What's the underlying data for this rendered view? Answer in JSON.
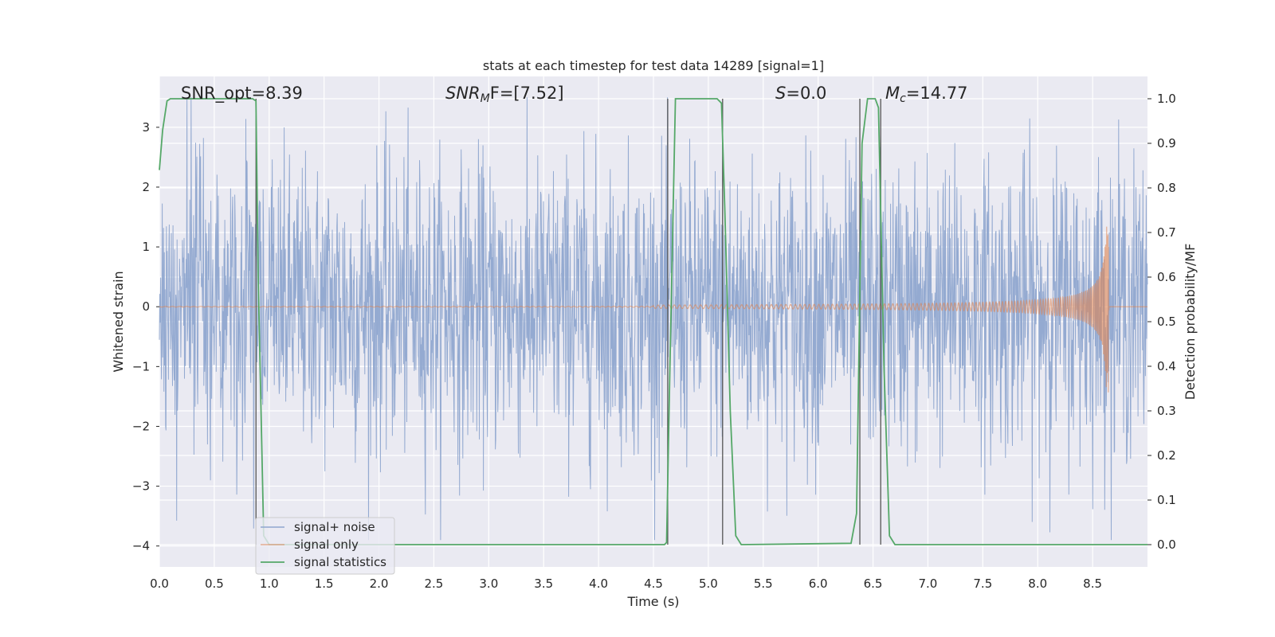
{
  "chart_data": {
    "type": "line",
    "title": "stats at each timestep for test data 14289 [signal=1]",
    "xlabel": "Time (s)",
    "ylabel": "Whitened strain",
    "ylabel_right": "Detection probability/MF",
    "xlim": [
      0.0,
      9.0
    ],
    "ylim": [
      -4.35,
      3.85
    ],
    "ylim_right": [
      -0.05,
      1.05
    ],
    "xticks": [
      "0.0",
      "0.5",
      "1.0",
      "1.5",
      "2.0",
      "2.5",
      "3.0",
      "3.5",
      "4.0",
      "4.5",
      "5.0",
      "5.5",
      "6.0",
      "6.5",
      "7.0",
      "7.5",
      "8.0",
      "8.5"
    ],
    "yticks_left": [
      "3",
      "2",
      "1",
      "0",
      "−1",
      "−2",
      "−3",
      "−4"
    ],
    "yticks_right": [
      "1.0",
      "0.9",
      "0.8",
      "0.7",
      "0.6",
      "0.5",
      "0.4",
      "0.3",
      "0.2",
      "0.1",
      "0.0"
    ],
    "grid": true,
    "legend_placement": "lower-left",
    "annotations": [
      {
        "text": "SNR_opt=8.39",
        "x": 0.2
      },
      {
        "text": "F=[7.52]",
        "prefix": "SNR",
        "sub": "M",
        "x": 2.6
      },
      {
        "text": "=0.0",
        "prefix": "S",
        "x": 5.6
      },
      {
        "text": "=14.77",
        "prefix": "M",
        "sub": "c",
        "x": 6.6
      }
    ],
    "series": [
      {
        "name": "signal+ noise",
        "color": "#8fa6cf",
        "noise_amplitude": 1.2,
        "noise_peak": 3.5
      },
      {
        "name": "signal only",
        "color": "#dd8452",
        "chirp_end_time": 8.65,
        "chirp_peak_amplitude": 1.45
      },
      {
        "name": "signal statistics",
        "color": "#55a868",
        "x": [
          0.0,
          0.03,
          0.07,
          0.1,
          0.85,
          0.88,
          0.9,
          0.95,
          1.0,
          4.6,
          4.62,
          4.65,
          4.7,
          5.08,
          5.12,
          5.15,
          5.2,
          5.25,
          5.3,
          6.3,
          6.35,
          6.4,
          6.45,
          6.5,
          6.52,
          6.55,
          6.6,
          6.65,
          6.7,
          9.0
        ],
        "y": [
          0.84,
          0.93,
          0.995,
          1.0,
          1.0,
          0.995,
          0.6,
          0.02,
          0.0,
          0.0,
          0.005,
          0.4,
          1.0,
          1.0,
          0.99,
          0.75,
          0.3,
          0.02,
          0.0,
          0.003,
          0.07,
          0.9,
          1.0,
          1.0,
          1.0,
          0.98,
          0.4,
          0.02,
          0.0,
          0.0
        ]
      }
    ],
    "vertical_markers": [
      {
        "x": 0.88,
        "y_range": [
          0.0,
          1.0
        ]
      },
      {
        "x": 4.63,
        "y_range": [
          0.0,
          1.0
        ]
      },
      {
        "x": 5.13,
        "y_range": [
          0.0,
          1.0
        ]
      },
      {
        "x": 6.38,
        "y_range": [
          0.0,
          1.0
        ]
      },
      {
        "x": 6.57,
        "y_range": [
          0.0,
          1.0
        ]
      }
    ]
  }
}
